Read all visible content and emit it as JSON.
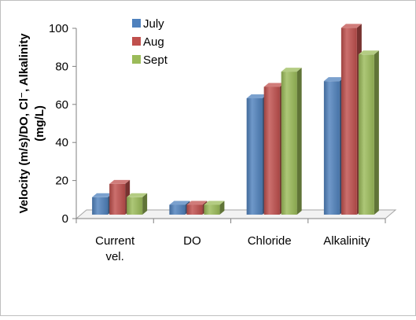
{
  "chart_data": {
    "type": "bar",
    "categories": [
      "Current vel.",
      "DO",
      "Chloride",
      "Alkalinity"
    ],
    "category_lines": [
      [
        "Current",
        "vel."
      ],
      [
        "DO"
      ],
      [
        "Chloride"
      ],
      [
        "Alkalinity"
      ]
    ],
    "series": [
      {
        "name": "July",
        "values": [
          10,
          6,
          62,
          71
        ]
      },
      {
        "name": "Aug",
        "values": [
          17,
          6,
          68,
          99
        ]
      },
      {
        "name": "Sept",
        "values": [
          10,
          6,
          76,
          85
        ]
      }
    ],
    "ylabel_lines": [
      "Velocity (m/s)/DO, Cl⁻, Alkalinity",
      "(mg/L)"
    ],
    "ylim": [
      0,
      100
    ],
    "yticks": [
      "0",
      "20",
      "40",
      "60",
      "80",
      "100"
    ],
    "legend_position": "top-left",
    "grid": false,
    "colors": {
      "July": "#4F81BD",
      "Aug": "#C0504D",
      "Sept": "#9BBB59"
    }
  }
}
